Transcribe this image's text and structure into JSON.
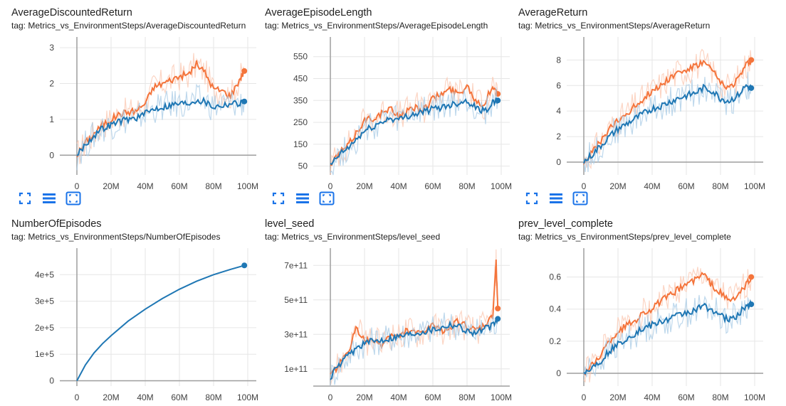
{
  "colors": {
    "orange": "#f4743b",
    "orange_light": "#fbc7b0",
    "blue": "#1f77b4",
    "blue_light": "#a8cbe6",
    "axis": "#9e9e9e",
    "grid": "#e6e6e6",
    "tool": "#1a73e8"
  },
  "toolbar_icons": [
    "expand-icon",
    "list-lines-icon",
    "fit-domain-icon"
  ],
  "chart_data": [
    {
      "type": "line",
      "title": "AverageDiscountedReturn",
      "tag": "tag: Metrics_vs_EnvironmentSteps/AverageDiscountedReturn",
      "xlabel": "",
      "ylabel": "",
      "xlim": [
        -10,
        105
      ],
      "ylim": [
        -0.55,
        3.3
      ],
      "xticks": [
        0,
        20,
        40,
        60,
        80,
        100
      ],
      "xtick_labels": [
        "0",
        "20M",
        "40M",
        "60M",
        "80M",
        "100M"
      ],
      "yticks": [
        0,
        1,
        2,
        3
      ],
      "ytick_labels": [
        "0",
        "1",
        "2",
        "3"
      ],
      "grid": true,
      "legend": "none",
      "series": [
        {
          "color": "orange",
          "x": [
            0,
            5,
            10,
            15,
            20,
            25,
            30,
            35,
            40,
            45,
            50,
            55,
            60,
            65,
            70,
            75,
            80,
            85,
            90,
            95,
            98
          ],
          "y": [
            0.0,
            0.35,
            0.6,
            0.85,
            1.0,
            1.15,
            1.2,
            1.25,
            1.45,
            1.9,
            2.0,
            2.1,
            2.2,
            2.25,
            2.55,
            2.3,
            1.85,
            1.8,
            1.65,
            2.1,
            2.35
          ]
        },
        {
          "color": "blue",
          "x": [
            0,
            5,
            10,
            15,
            20,
            25,
            30,
            35,
            40,
            45,
            50,
            55,
            60,
            65,
            70,
            75,
            80,
            85,
            90,
            95,
            98
          ],
          "y": [
            0.0,
            0.3,
            0.55,
            0.75,
            0.85,
            0.95,
            1.0,
            1.05,
            1.15,
            1.3,
            1.35,
            1.4,
            1.45,
            1.45,
            1.55,
            1.5,
            1.35,
            1.4,
            1.45,
            1.45,
            1.5
          ]
        }
      ]
    },
    {
      "type": "line",
      "title": "AverageEpisodeLength",
      "tag": "tag: Metrics_vs_EnvironmentSteps/AverageEpisodeLength",
      "xlabel": "",
      "ylabel": "",
      "xlim": [
        -10,
        105
      ],
      "ylim": [
        10,
        640
      ],
      "xticks": [
        0,
        20,
        40,
        60,
        80,
        100
      ],
      "xtick_labels": [
        "0",
        "20M",
        "40M",
        "60M",
        "80M",
        "100M"
      ],
      "yticks": [
        50,
        150,
        250,
        350,
        450,
        550
      ],
      "ytick_labels": [
        "50",
        "150",
        "250",
        "350",
        "450",
        "550"
      ],
      "grid": true,
      "legend": "none",
      "series": [
        {
          "color": "orange",
          "x": [
            0,
            5,
            10,
            15,
            20,
            25,
            30,
            35,
            40,
            45,
            50,
            55,
            60,
            65,
            70,
            75,
            80,
            85,
            90,
            95,
            98
          ],
          "y": [
            50,
            110,
            140,
            200,
            260,
            270,
            290,
            310,
            280,
            300,
            320,
            310,
            360,
            380,
            400,
            380,
            420,
            350,
            330,
            420,
            380
          ]
        },
        {
          "color": "blue",
          "x": [
            0,
            5,
            10,
            15,
            20,
            25,
            30,
            35,
            40,
            45,
            50,
            55,
            60,
            65,
            70,
            75,
            80,
            85,
            90,
            95,
            98
          ],
          "y": [
            50,
            100,
            130,
            170,
            210,
            230,
            250,
            270,
            260,
            280,
            290,
            300,
            310,
            320,
            330,
            340,
            350,
            320,
            300,
            340,
            350
          ]
        }
      ]
    },
    {
      "type": "line",
      "title": "AverageReturn",
      "tag": "tag: Metrics_vs_EnvironmentSteps/AverageReturn",
      "xlabel": "",
      "ylabel": "",
      "xlim": [
        -10,
        105
      ],
      "ylim": [
        -1.0,
        9.8
      ],
      "xticks": [
        0,
        20,
        40,
        60,
        80,
        100
      ],
      "xtick_labels": [
        "0",
        "20M",
        "40M",
        "60M",
        "80M",
        "100M"
      ],
      "yticks": [
        0,
        2,
        4,
        6,
        8
      ],
      "ytick_labels": [
        "0",
        "2",
        "4",
        "6",
        "8"
      ],
      "grid": true,
      "legend": "none",
      "series": [
        {
          "color": "orange",
          "x": [
            0,
            5,
            10,
            15,
            20,
            25,
            30,
            35,
            40,
            45,
            50,
            55,
            60,
            65,
            70,
            75,
            80,
            85,
            90,
            95,
            98
          ],
          "y": [
            0.0,
            0.8,
            1.6,
            2.6,
            3.2,
            3.8,
            4.4,
            5.0,
            5.6,
            6.0,
            6.6,
            7.0,
            7.2,
            7.5,
            7.8,
            7.2,
            6.2,
            5.8,
            6.5,
            7.6,
            8.0
          ]
        },
        {
          "color": "blue",
          "x": [
            0,
            5,
            10,
            15,
            20,
            25,
            30,
            35,
            40,
            45,
            50,
            55,
            60,
            65,
            70,
            75,
            80,
            85,
            90,
            95,
            98
          ],
          "y": [
            0.0,
            0.6,
            1.3,
            2.0,
            2.6,
            3.0,
            3.4,
            3.8,
            4.2,
            4.4,
            4.7,
            5.0,
            5.2,
            5.4,
            5.8,
            5.6,
            5.0,
            4.8,
            5.2,
            6.0,
            5.8
          ]
        }
      ]
    },
    {
      "type": "line",
      "title": "NumberOfEpisodes",
      "tag": "tag: Metrics_vs_EnvironmentSteps/NumberOfEpisodes",
      "xlabel": "",
      "ylabel": "",
      "xlim": [
        -10,
        105
      ],
      "ylim": [
        -20000,
        500000
      ],
      "xticks": [
        0,
        20,
        40,
        60,
        80,
        100
      ],
      "xtick_labels": [
        "0",
        "20M",
        "40M",
        "60M",
        "80M",
        "100M"
      ],
      "yticks": [
        0,
        100000,
        200000,
        300000,
        400000
      ],
      "ytick_labels": [
        "0",
        "1e+5",
        "2e+5",
        "3e+5",
        "4e+5"
      ],
      "grid": true,
      "legend": "none",
      "series": [
        {
          "color": "blue",
          "x": [
            0,
            5,
            10,
            15,
            20,
            30,
            40,
            50,
            60,
            70,
            80,
            90,
            98
          ],
          "y": [
            0,
            60000,
            105000,
            140000,
            170000,
            225000,
            270000,
            310000,
            345000,
            375000,
            400000,
            420000,
            435000
          ]
        }
      ]
    },
    {
      "type": "line",
      "title": "level_seed",
      "tag": "tag: Metrics_vs_EnvironmentSteps/level_seed",
      "xlabel": "",
      "ylabel": "",
      "xlim": [
        -10,
        105
      ],
      "ylim": [
        0,
        800000000000
      ],
      "xticks": [
        0,
        20,
        40,
        60,
        80,
        100
      ],
      "xtick_labels": [
        "0",
        "20M",
        "40M",
        "60M",
        "80M",
        "100M"
      ],
      "yticks": [
        100000000000,
        300000000000,
        500000000000,
        700000000000
      ],
      "ytick_labels": [
        "1e+11",
        "3e+11",
        "5e+11",
        "7e+11"
      ],
      "grid": true,
      "legend": "none",
      "series": [
        {
          "color": "orange",
          "x": [
            0,
            5,
            10,
            15,
            20,
            25,
            30,
            35,
            40,
            45,
            50,
            55,
            60,
            65,
            70,
            75,
            80,
            85,
            90,
            95,
            97,
            98
          ],
          "y": [
            50000000000,
            130000000000,
            180000000000,
            340000000000,
            260000000000,
            260000000000,
            240000000000,
            300000000000,
            280000000000,
            330000000000,
            300000000000,
            320000000000,
            350000000000,
            320000000000,
            340000000000,
            380000000000,
            340000000000,
            320000000000,
            350000000000,
            400000000000,
            720000000000,
            450000000000
          ]
        },
        {
          "color": "blue",
          "x": [
            0,
            5,
            10,
            15,
            20,
            25,
            30,
            35,
            40,
            45,
            50,
            55,
            60,
            65,
            70,
            75,
            80,
            85,
            90,
            95,
            98
          ],
          "y": [
            50000000000,
            120000000000,
            170000000000,
            220000000000,
            250000000000,
            260000000000,
            270000000000,
            280000000000,
            290000000000,
            300000000000,
            310000000000,
            320000000000,
            330000000000,
            340000000000,
            360000000000,
            350000000000,
            320000000000,
            310000000000,
            330000000000,
            350000000000,
            390000000000
          ]
        }
      ]
    },
    {
      "type": "line",
      "title": "prev_level_complete",
      "tag": "tag: Metrics_vs_EnvironmentSteps/prev_level_complete",
      "xlabel": "",
      "ylabel": "",
      "xlim": [
        -10,
        105
      ],
      "ylim": [
        -0.08,
        0.78
      ],
      "xticks": [
        0,
        20,
        40,
        60,
        80,
        100
      ],
      "xtick_labels": [
        "0",
        "20M",
        "40M",
        "60M",
        "80M",
        "100M"
      ],
      "yticks": [
        0,
        0.2,
        0.4,
        0.6
      ],
      "ytick_labels": [
        "0",
        "0.2",
        "0.4",
        "0.6"
      ],
      "grid": true,
      "legend": "none",
      "series": [
        {
          "color": "orange",
          "x": [
            0,
            5,
            10,
            15,
            20,
            25,
            30,
            35,
            40,
            45,
            50,
            55,
            60,
            65,
            70,
            75,
            80,
            85,
            90,
            95,
            98
          ],
          "y": [
            0.0,
            0.05,
            0.12,
            0.2,
            0.26,
            0.3,
            0.33,
            0.38,
            0.4,
            0.45,
            0.48,
            0.52,
            0.56,
            0.58,
            0.62,
            0.55,
            0.5,
            0.45,
            0.48,
            0.55,
            0.6
          ]
        },
        {
          "color": "blue",
          "x": [
            0,
            5,
            10,
            15,
            20,
            25,
            30,
            35,
            40,
            45,
            50,
            55,
            60,
            65,
            70,
            75,
            80,
            85,
            90,
            95,
            98
          ],
          "y": [
            0.0,
            0.04,
            0.08,
            0.14,
            0.18,
            0.22,
            0.25,
            0.28,
            0.3,
            0.32,
            0.34,
            0.36,
            0.38,
            0.39,
            0.42,
            0.4,
            0.36,
            0.33,
            0.36,
            0.42,
            0.43
          ]
        }
      ]
    }
  ]
}
